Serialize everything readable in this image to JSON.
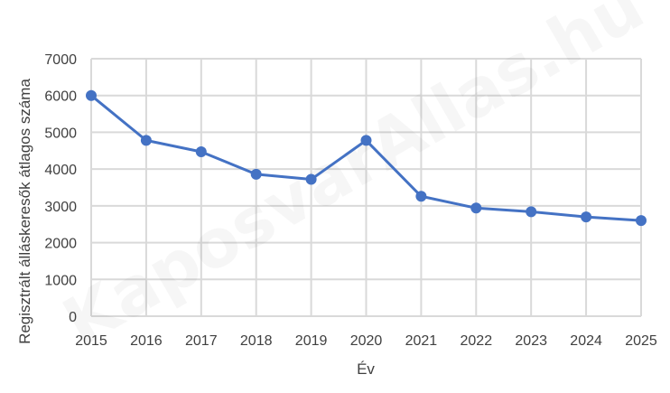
{
  "chart_data": {
    "type": "line",
    "title": "",
    "xlabel": "Év",
    "ylabel": "Regisztrált álláskeresők átlagos száma",
    "categories": [
      "2015",
      "2016",
      "2017",
      "2018",
      "2019",
      "2020",
      "2021",
      "2022",
      "2023",
      "2024",
      "2025"
    ],
    "series": [
      {
        "name": "Regisztrált álláskeresők átlagos száma",
        "color": "#4472C4",
        "values": [
          6000,
          4780,
          4470,
          3860,
          3720,
          4780,
          3260,
          2940,
          2840,
          2700,
          2600
        ]
      }
    ],
    "ylim": [
      0,
      7000
    ],
    "yticks": [
      0,
      1000,
      2000,
      3000,
      4000,
      5000,
      6000,
      7000
    ],
    "grid": true,
    "legend": "none",
    "markers": true
  },
  "watermark": "KaposvarAllas.hu",
  "colors": {
    "line": "#4472C4",
    "grid": "#D9D9D9",
    "text": "#404040"
  }
}
